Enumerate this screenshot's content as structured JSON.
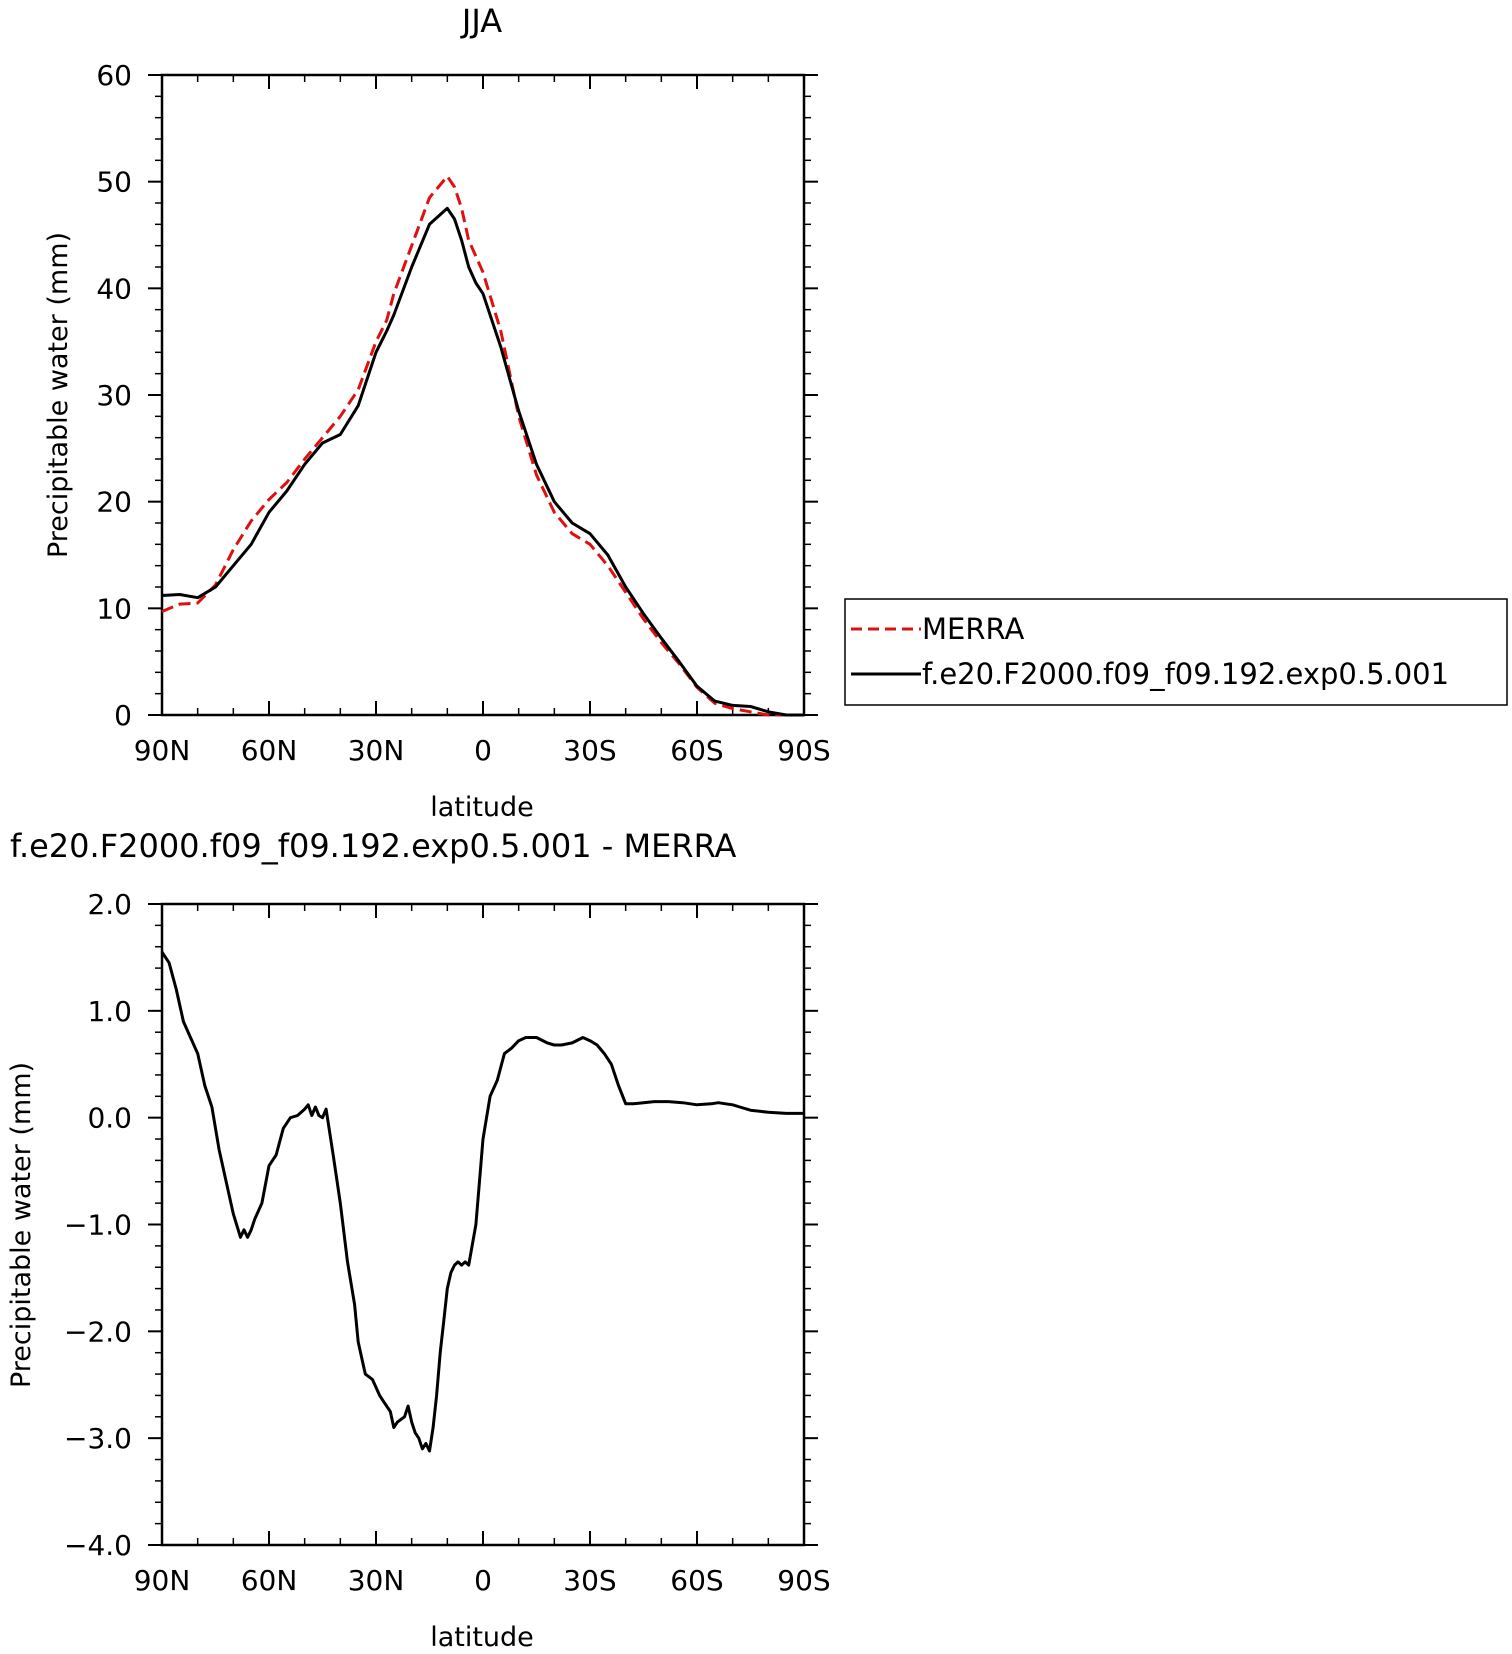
{
  "chart_data": [
    {
      "type": "line",
      "title": "JJA",
      "xlabel": "latitude",
      "ylabel": "Precipitable water (mm)",
      "xlim": [
        90,
        -90
      ],
      "ylim": [
        0,
        60
      ],
      "xticks": [
        90,
        60,
        30,
        0,
        -30,
        -60,
        -90
      ],
      "xtick_labels": [
        "90N",
        "60N",
        "30N",
        "0",
        "30S",
        "60S",
        "90S"
      ],
      "yticks": [
        0,
        10,
        20,
        30,
        40,
        50,
        60
      ],
      "ytick_labels": [
        "0",
        "10",
        "20",
        "30",
        "40",
        "50",
        "60"
      ],
      "grid": false,
      "legend_position": "right",
      "series": [
        {
          "name": "MERRA",
          "color": "#e01010",
          "style": "dashed",
          "x": [
            90,
            85,
            80,
            75,
            70,
            65,
            60,
            55,
            50,
            45,
            40,
            35,
            30,
            27,
            25,
            20,
            15,
            10,
            8,
            6,
            4,
            2,
            0,
            -5,
            -10,
            -15,
            -20,
            -25,
            -30,
            -35,
            -40,
            -45,
            -50,
            -55,
            -60,
            -65,
            -70,
            -75,
            -80,
            -85,
            -90
          ],
          "y": [
            9.7,
            10.4,
            10.5,
            12.2,
            15.5,
            18.2,
            20.2,
            21.8,
            24.0,
            26.0,
            28.0,
            30.5,
            35.0,
            37.0,
            39.5,
            44.0,
            48.5,
            50.5,
            49.5,
            47.5,
            44.5,
            43.0,
            41.5,
            36.0,
            28.0,
            22.5,
            19.0,
            17.0,
            16.0,
            14.0,
            11.5,
            9.0,
            6.8,
            4.8,
            2.6,
            1.1,
            0.6,
            0.3,
            0.0,
            0.0,
            0.0
          ]
        },
        {
          "name": "f.e20.F2000.f09_f09.192.exp0.5.001",
          "color": "#000000",
          "style": "solid",
          "x": [
            90,
            85,
            80,
            75,
            70,
            65,
            60,
            55,
            50,
            45,
            40,
            35,
            30,
            27,
            25,
            20,
            15,
            10,
            8,
            6,
            4,
            2,
            0,
            -5,
            -10,
            -15,
            -20,
            -25,
            -30,
            -35,
            -40,
            -45,
            -50,
            -55,
            -60,
            -65,
            -70,
            -75,
            -80,
            -85,
            -90
          ],
          "y": [
            11.2,
            11.3,
            11.0,
            12.0,
            14.0,
            16.0,
            19.0,
            21.0,
            23.5,
            25.5,
            26.3,
            29.0,
            34.0,
            36.0,
            37.5,
            42.0,
            46.0,
            47.5,
            46.5,
            44.5,
            42.0,
            40.5,
            39.5,
            34.5,
            28.5,
            23.5,
            20.0,
            18.0,
            17.0,
            15.0,
            12.0,
            9.5,
            7.2,
            5.0,
            2.7,
            1.3,
            0.9,
            0.8,
            0.3,
            0.0,
            0.0
          ]
        }
      ]
    },
    {
      "type": "line",
      "title": "f.e20.F2000.f09_f09.192.exp0.5.001 - MERRA",
      "xlabel": "latitude",
      "ylabel": "Precipitable water (mm)",
      "xlim": [
        90,
        -90
      ],
      "ylim": [
        -4.0,
        2.0
      ],
      "xticks": [
        90,
        60,
        30,
        0,
        -30,
        -60,
        -90
      ],
      "xtick_labels": [
        "90N",
        "60N",
        "30N",
        "0",
        "30S",
        "60S",
        "90S"
      ],
      "yticks": [
        -4.0,
        -3.0,
        -2.0,
        -1.0,
        0.0,
        1.0,
        2.0
      ],
      "ytick_labels": [
        "-4.0",
        "-3.0",
        "-2.0",
        "-1.0",
        "0.0",
        "1.0",
        "2.0"
      ],
      "grid": false,
      "series": [
        {
          "color": "#000000",
          "style": "solid",
          "x": [
            90,
            88,
            86,
            84,
            82,
            80,
            78,
            76,
            74,
            72,
            70,
            68,
            67,
            66,
            65,
            64,
            62,
            60,
            58,
            56,
            54,
            52,
            50,
            49,
            48,
            47,
            46,
            45,
            44,
            42,
            40,
            38,
            36,
            35,
            33,
            31,
            29,
            28,
            26,
            25,
            24,
            22,
            21,
            20,
            19,
            18,
            17,
            16,
            15,
            14,
            13,
            12,
            11,
            10,
            9,
            8,
            7,
            6,
            5,
            4,
            2,
            0,
            -2,
            -4,
            -6,
            -8,
            -10,
            -12,
            -15,
            -18,
            -20,
            -22,
            -25,
            -28,
            -30,
            -32,
            -34,
            -36,
            -38,
            -40,
            -42,
            -45,
            -48,
            -52,
            -56,
            -60,
            -64,
            -66,
            -68,
            -70,
            -72,
            -75,
            -80,
            -85,
            -88,
            -90
          ],
          "y": [
            1.55,
            1.45,
            1.2,
            0.9,
            0.75,
            0.6,
            0.3,
            0.1,
            -0.3,
            -0.6,
            -0.9,
            -1.12,
            -1.05,
            -1.12,
            -1.05,
            -0.95,
            -0.8,
            -0.45,
            -0.35,
            -0.1,
            0.0,
            0.02,
            0.08,
            0.12,
            0.02,
            0.1,
            0.02,
            0.0,
            0.08,
            -0.35,
            -0.8,
            -1.35,
            -1.75,
            -2.1,
            -2.4,
            -2.45,
            -2.6,
            -2.65,
            -2.75,
            -2.9,
            -2.85,
            -2.8,
            -2.7,
            -2.85,
            -2.95,
            -3.0,
            -3.1,
            -3.05,
            -3.12,
            -2.9,
            -2.6,
            -2.2,
            -1.9,
            -1.6,
            -1.45,
            -1.38,
            -1.35,
            -1.38,
            -1.35,
            -1.38,
            -1.0,
            -0.2,
            0.2,
            0.35,
            0.6,
            0.65,
            0.72,
            0.75,
            0.75,
            0.7,
            0.68,
            0.68,
            0.7,
            0.75,
            0.72,
            0.68,
            0.6,
            0.5,
            0.3,
            0.13,
            0.13,
            0.14,
            0.15,
            0.15,
            0.14,
            0.12,
            0.13,
            0.14,
            0.13,
            0.12,
            0.1,
            0.07,
            0.05,
            0.04,
            0.04,
            0.04
          ]
        }
      ]
    }
  ]
}
